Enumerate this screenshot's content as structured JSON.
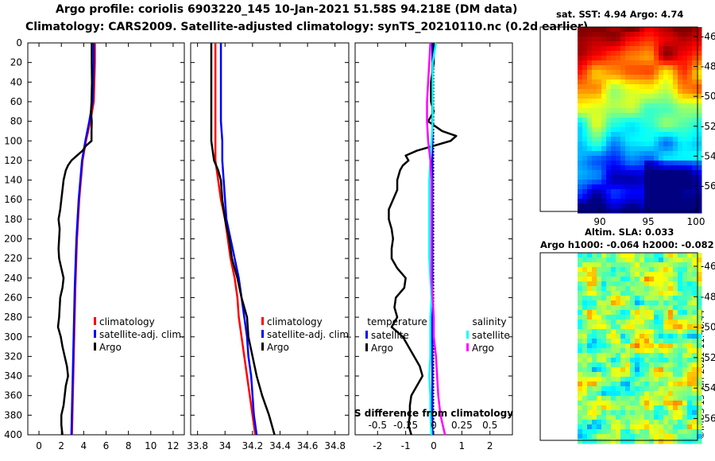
{
  "header": {
    "line1": "Argo profile: coriolis 6903220_145 10-Jan-2021 51.58S 94.218E (DM data)",
    "line2": "Climatology: CARS2009. Satellite-adjusted climatology: synTS_20210110.nc (0.2d earlier)"
  },
  "sst_map": {
    "title": "sat. SST: 4.94 Argo: 4.74",
    "lat_ticks": [
      "-46",
      "-48",
      "-50",
      "-52",
      "-54",
      "-56"
    ],
    "lon_ticks": [
      "90",
      "95",
      "100"
    ]
  },
  "sla_map": {
    "title1": "Altim. SLA: 0.033",
    "title2": "Argo h1000: -0.064 h2000: -0.082",
    "lat_ticks": [
      "-46",
      "-48",
      "-50",
      "-52",
      "-54",
      "-56"
    ]
  },
  "footer": {
    "credit": "©IMOS 15-Jan-2021 11:48:44"
  },
  "colors": {
    "argo": "#000000",
    "climatology": "#ff0000",
    "satellite": "#0000ff",
    "sal_satellite": "#00ffff",
    "sal_argo": "#ff00ff"
  },
  "chart_data": [
    {
      "type": "line",
      "panel": "temperature",
      "xlim": [
        -1,
        13
      ],
      "ylim": [
        400,
        0
      ],
      "xticks": [
        "0",
        "2",
        "4",
        "6",
        "8",
        "10",
        "12"
      ],
      "yticks": [
        "0",
        "20",
        "40",
        "60",
        "80",
        "100",
        "120",
        "140",
        "160",
        "180",
        "200",
        "220",
        "240",
        "260",
        "280",
        "300",
        "320",
        "340",
        "360",
        "380",
        "400"
      ],
      "legend": [
        "climatology",
        "satellite-adj. clim.",
        "Argo"
      ],
      "series": [
        {
          "name": "climatology",
          "depth": [
            0,
            20,
            40,
            60,
            80,
            100,
            120,
            140,
            160,
            180,
            200,
            250,
            300,
            350,
            400
          ],
          "values": [
            5.0,
            5.0,
            4.95,
            4.9,
            4.6,
            4.2,
            3.9,
            3.75,
            3.6,
            3.5,
            3.4,
            3.25,
            3.15,
            3.05,
            2.95
          ]
        },
        {
          "name": "satellite-adj. clim.",
          "depth": [
            0,
            20,
            40,
            60,
            80,
            100,
            120,
            140,
            160,
            180,
            200,
            250,
            300,
            350,
            400
          ],
          "values": [
            4.9,
            4.9,
            4.85,
            4.8,
            4.5,
            4.15,
            3.85,
            3.7,
            3.55,
            3.45,
            3.35,
            3.2,
            3.1,
            3.0,
            2.9
          ]
        },
        {
          "name": "Argo",
          "depth": [
            0,
            20,
            40,
            60,
            70,
            80,
            90,
            100,
            105,
            110,
            115,
            120,
            125,
            130,
            140,
            150,
            160,
            170,
            180,
            190,
            200,
            210,
            220,
            230,
            240,
            250,
            260,
            270,
            280,
            290,
            300,
            310,
            320,
            330,
            340,
            350,
            360,
            370,
            380,
            390,
            400
          ],
          "values": [
            4.72,
            4.72,
            4.74,
            4.7,
            4.65,
            4.72,
            4.7,
            4.7,
            4.2,
            3.9,
            3.4,
            2.9,
            2.6,
            2.4,
            2.2,
            2.1,
            2.0,
            1.9,
            1.75,
            1.85,
            1.8,
            1.75,
            1.8,
            2.0,
            2.2,
            2.1,
            1.9,
            1.85,
            1.8,
            1.7,
            1.95,
            2.1,
            2.3,
            2.5,
            2.6,
            2.4,
            2.3,
            2.2,
            2.0,
            2.0,
            2.1
          ]
        }
      ]
    },
    {
      "type": "line",
      "panel": "salinity",
      "xlim": [
        33.75,
        34.9
      ],
      "ylim": [
        400,
        0
      ],
      "xticks": [
        "33.8",
        "34",
        "34.2",
        "34.4",
        "34.6",
        "34.8"
      ],
      "legend": [
        "climatology",
        "satellite-adj. clim.",
        "Argo"
      ],
      "series": [
        {
          "name": "climatology",
          "depth": [
            0,
            20,
            40,
            60,
            80,
            100,
            120,
            140,
            160,
            180,
            200,
            220,
            240,
            260,
            280,
            300,
            320,
            340,
            360,
            380,
            400
          ],
          "values": [
            33.93,
            33.93,
            33.93,
            33.93,
            33.93,
            33.93,
            33.93,
            33.95,
            33.97,
            34.0,
            34.02,
            34.04,
            34.07,
            34.09,
            34.1,
            34.12,
            34.14,
            34.16,
            34.18,
            34.2,
            34.22
          ]
        },
        {
          "name": "satellite-adj. clim.",
          "depth": [
            0,
            20,
            40,
            60,
            80,
            100,
            120,
            140,
            160,
            180,
            200,
            220,
            240,
            260,
            280,
            300,
            320,
            340,
            360,
            380,
            400
          ],
          "values": [
            33.97,
            33.97,
            33.97,
            33.97,
            33.97,
            33.98,
            33.98,
            33.99,
            34.0,
            34.01,
            34.04,
            34.07,
            34.1,
            34.12,
            34.14,
            34.16,
            34.17,
            34.19,
            34.2,
            34.21,
            34.23
          ]
        },
        {
          "name": "Argo",
          "depth": [
            0,
            20,
            40,
            60,
            80,
            100,
            120,
            130,
            140,
            160,
            180,
            200,
            220,
            240,
            260,
            280,
            300,
            320,
            340,
            360,
            380,
            400
          ],
          "values": [
            33.9,
            33.9,
            33.9,
            33.9,
            33.9,
            33.9,
            33.92,
            33.95,
            33.97,
            33.98,
            34.0,
            34.03,
            34.05,
            34.09,
            34.12,
            34.16,
            34.17,
            34.2,
            34.23,
            34.27,
            34.32,
            34.36
          ]
        }
      ]
    },
    {
      "type": "line",
      "panel": "difference",
      "xlim": [
        -2.8,
        2.8
      ],
      "ylim": [
        400,
        0
      ],
      "xticks": [
        "-2",
        "-1",
        "0",
        "1",
        "2"
      ],
      "s_xticks": [
        "-0.5",
        "-0.25",
        "0",
        "0.25",
        "0.5"
      ],
      "annotation": "S difference from climatology",
      "legend_temperature": {
        "title": "temperature",
        "items": [
          "satellite",
          "Argo"
        ]
      },
      "legend_salinity": {
        "title": "salinity",
        "items": [
          "satellite",
          "Argo"
        ]
      },
      "series": [
        {
          "name": "temperature satellite",
          "depth": [
            0,
            40,
            80,
            120,
            160,
            200,
            250,
            300,
            350,
            400
          ],
          "values": [
            -0.05,
            -0.05,
            -0.05,
            -0.05,
            -0.05,
            -0.05,
            -0.05,
            -0.05,
            -0.05,
            -0.05
          ]
        },
        {
          "name": "temperature Argo",
          "depth": [
            0,
            20,
            40,
            60,
            70,
            80,
            90,
            95,
            100,
            105,
            110,
            115,
            120,
            125,
            130,
            140,
            150,
            160,
            170,
            180,
            190,
            200,
            210,
            220,
            230,
            240,
            250,
            260,
            270,
            280,
            290,
            300,
            310,
            320,
            330,
            340,
            350,
            360,
            370,
            380,
            390,
            400
          ],
          "values": [
            0.0,
            0.0,
            -0.1,
            -0.1,
            0.0,
            -0.2,
            0.3,
            0.8,
            0.6,
            0.0,
            -0.6,
            -1.0,
            -0.9,
            -1.1,
            -1.2,
            -1.3,
            -1.3,
            -1.45,
            -1.6,
            -1.6,
            -1.5,
            -1.45,
            -1.5,
            -1.5,
            -1.3,
            -1.0,
            -1.05,
            -1.35,
            -1.4,
            -1.3,
            -1.5,
            -1.1,
            -0.9,
            -0.7,
            -0.5,
            -0.4,
            -0.6,
            -0.8,
            -0.85,
            -0.85,
            -0.9,
            -0.8
          ]
        },
        {
          "name": "salinity satellite",
          "depth": [
            0,
            20,
            40,
            60,
            80,
            100,
            120,
            140,
            160,
            180,
            200,
            220,
            240,
            260,
            280,
            300,
            320,
            340,
            360,
            380,
            400
          ],
          "values": [
            0.02,
            -0.01,
            -0.01,
            -0.01,
            -0.01,
            -0.02,
            -0.03,
            -0.04,
            -0.04,
            -0.04,
            -0.04,
            -0.04,
            -0.03,
            -0.02,
            -0.03,
            -0.03,
            -0.03,
            -0.04,
            -0.03,
            -0.03,
            -0.02
          ]
        },
        {
          "name": "salinity Argo",
          "depth": [
            0,
            20,
            40,
            60,
            80,
            100,
            120,
            140,
            160,
            180,
            200,
            220,
            240,
            260,
            280,
            300,
            320,
            340,
            360,
            370,
            380,
            390,
            400
          ],
          "values": [
            -0.03,
            -0.04,
            -0.05,
            -0.06,
            -0.06,
            -0.05,
            -0.03,
            -0.02,
            -0.02,
            -0.02,
            -0.02,
            -0.02,
            -0.02,
            -0.01,
            0.0,
            0.0,
            0.02,
            0.03,
            0.04,
            0.05,
            0.06,
            0.08,
            0.1
          ]
        }
      ]
    }
  ]
}
